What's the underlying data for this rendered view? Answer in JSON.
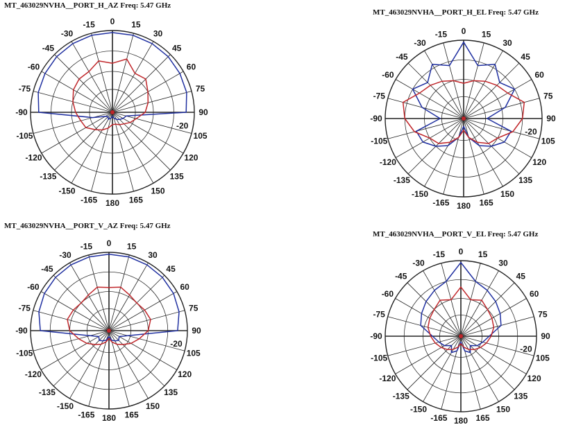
{
  "chart_data": [
    {
      "type": "polar-line",
      "title": "MT_463029NVHA__PORT_H_AZ  Freq:  5.47 GHz",
      "angle_labels": [
        "0",
        "15",
        "30",
        "45",
        "60",
        "75",
        "90",
        "105",
        "120",
        "135",
        "150",
        "165",
        "180",
        "165",
        "150",
        "135",
        "120",
        "105",
        "-90",
        "-105",
        "-120",
        "-135",
        "-150",
        "-165",
        "-75",
        "-60",
        "-45",
        "-30",
        "-15"
      ],
      "ring_label": "-20",
      "r_range_db": [
        -40,
        0
      ],
      "series": [
        {
          "color": "#1f2fa0",
          "angles_deg": [
            -180,
            -165,
            -150,
            -135,
            -120,
            -105,
            -90,
            -75,
            -60,
            -45,
            -30,
            -15,
            0,
            15,
            30,
            45,
            60,
            75,
            90,
            105,
            120,
            135,
            150,
            165,
            180
          ],
          "values_db": [
            -38,
            -37,
            -36,
            -37,
            -36,
            -30,
            -4,
            -2.5,
            -2,
            -1.5,
            -1.2,
            -1,
            -1,
            -1,
            -1.2,
            -1.5,
            -2,
            -2.5,
            -4,
            -33,
            -34,
            -35,
            -36,
            -37,
            -38
          ]
        },
        {
          "color": "#c0262a",
          "angles_deg": [
            -180,
            -165,
            -150,
            -135,
            -120,
            -105,
            -90,
            -75,
            -60,
            -45,
            -30,
            -15,
            0,
            15,
            30,
            45,
            60,
            75,
            90,
            105,
            120,
            135,
            150,
            165,
            180
          ],
          "values_db": [
            -34,
            -32,
            -30,
            -28,
            -25,
            -24,
            -22,
            -20,
            -18,
            -17,
            -17,
            -14,
            -16,
            -13,
            -18,
            -17,
            -20,
            -22,
            -24,
            -28,
            -30,
            -32,
            -33,
            -34,
            -34
          ]
        }
      ]
    },
    {
      "type": "polar-line",
      "title": "MT_463029NVHA__PORT_H_EL  Freq:  5.47 GHz",
      "angle_labels": [
        "0",
        "15",
        "30",
        "45",
        "60",
        "75",
        "90",
        "105",
        "120",
        "135",
        "150",
        "165",
        "180",
        "165",
        "150",
        "135",
        "120",
        "105",
        "-90",
        "-105",
        "-120",
        "-135",
        "-150",
        "-165",
        "-75",
        "-60",
        "-45",
        "-30",
        "-15"
      ],
      "ring_label": "-20",
      "r_range_db": [
        -40,
        0
      ],
      "series": [
        {
          "color": "#1f2fa0",
          "angles_deg": [
            -180,
            -165,
            -150,
            -135,
            -120,
            -105,
            -90,
            -75,
            -60,
            -45,
            -30,
            -15,
            0,
            15,
            30,
            45,
            60,
            75,
            90,
            105,
            120,
            135,
            150,
            165,
            180
          ],
          "values_db": [
            -36,
            -30,
            -24,
            -20,
            -16,
            -15,
            -28,
            -18,
            -10,
            -14,
            -8,
            -12,
            -1,
            -12,
            -8,
            -14,
            -10,
            -18,
            -28,
            -15,
            -16,
            -20,
            -24,
            -30,
            -36
          ]
        },
        {
          "color": "#c0262a",
          "angles_deg": [
            -180,
            -165,
            -150,
            -135,
            -120,
            -105,
            -90,
            -75,
            -60,
            -45,
            -30,
            -15,
            0,
            15,
            30,
            45,
            60,
            75,
            90,
            105,
            120,
            135,
            150,
            165,
            180
          ],
          "values_db": [
            -34,
            -30,
            -26,
            -22,
            -20,
            -14,
            -10,
            -8,
            -14,
            -16,
            -18,
            -20,
            -22,
            -20,
            -18,
            -16,
            -14,
            -8,
            -10,
            -14,
            -20,
            -22,
            -26,
            -30,
            -34
          ]
        }
      ]
    },
    {
      "type": "polar-line",
      "title": "MT_463029NVHA__PORT_V_AZ  Freq:  5.47 GHz",
      "angle_labels": [
        "0",
        "15",
        "30",
        "45",
        "60",
        "75",
        "90",
        "105",
        "120",
        "135",
        "150",
        "165",
        "180",
        "165",
        "150",
        "135",
        "120",
        "105",
        "-90",
        "-105",
        "-120",
        "-135",
        "-150",
        "-165",
        "-75",
        "-60",
        "-45",
        "-30",
        "-15"
      ],
      "ring_label": "-20",
      "r_range_db": [
        -40,
        0
      ],
      "series": [
        {
          "color": "#1f2fa0",
          "angles_deg": [
            -180,
            -165,
            -150,
            -135,
            -120,
            -105,
            -90,
            -75,
            -60,
            -45,
            -30,
            -15,
            0,
            15,
            30,
            45,
            60,
            75,
            90,
            105,
            120,
            135,
            150,
            165,
            180
          ],
          "values_db": [
            -37,
            -35,
            -34,
            -33,
            -34,
            -30,
            -5,
            -3,
            -2,
            -1.5,
            -1.2,
            -1,
            -1,
            -1,
            -1.2,
            -1.5,
            -2,
            -3,
            -5,
            -30,
            -34,
            -33,
            -34,
            -35,
            -37
          ]
        },
        {
          "color": "#c0262a",
          "angles_deg": [
            -180,
            -165,
            -150,
            -135,
            -120,
            -105,
            -90,
            -75,
            -60,
            -45,
            -30,
            -15,
            0,
            15,
            30,
            45,
            60,
            75,
            90,
            105,
            120,
            135,
            150,
            165,
            180
          ],
          "values_db": [
            -36,
            -34,
            -32,
            -30,
            -27,
            -24,
            -20,
            -18,
            -19,
            -20,
            -19,
            -17,
            -18,
            -17,
            -19,
            -20,
            -19,
            -18,
            -20,
            -24,
            -27,
            -30,
            -32,
            -34,
            -36
          ]
        }
      ]
    },
    {
      "type": "polar-line",
      "title": "MT_463029NVHA__PORT_V_EL  Freq:  5.47 GHz",
      "angle_labels": [
        "0",
        "15",
        "30",
        "45",
        "60",
        "75",
        "90",
        "105",
        "120",
        "135",
        "150",
        "165",
        "180",
        "165",
        "150",
        "135",
        "120",
        "105",
        "-90",
        "-105",
        "-120",
        "-135",
        "-150",
        "-165",
        "-75",
        "-60",
        "-45",
        "-30",
        "-15"
      ],
      "ring_label": "-20",
      "r_range_db": [
        -40,
        0
      ],
      "series": [
        {
          "color": "#1f2fa0",
          "angles_deg": [
            -180,
            -165,
            -150,
            -135,
            -120,
            -105,
            -90,
            -75,
            -60,
            -45,
            -30,
            -15,
            0,
            15,
            30,
            45,
            60,
            75,
            90,
            105,
            120,
            135,
            150,
            165,
            180
          ],
          "values_db": [
            -37,
            -32,
            -30,
            -33,
            -30,
            -28,
            -25,
            -18,
            -16,
            -14,
            -12,
            -10,
            -1,
            -10,
            -12,
            -14,
            -16,
            -18,
            -25,
            -28,
            -30,
            -33,
            -30,
            -32,
            -37
          ]
        },
        {
          "color": "#c0262a",
          "angles_deg": [
            -180,
            -165,
            -150,
            -135,
            -120,
            -105,
            -90,
            -75,
            -60,
            -45,
            -30,
            -15,
            0,
            15,
            30,
            45,
            60,
            75,
            90,
            105,
            120,
            135,
            150,
            165,
            180
          ],
          "values_db": [
            -36,
            -34,
            -32,
            -30,
            -28,
            -26,
            -24,
            -22,
            -21,
            -20,
            -18,
            -20,
            -14,
            -20,
            -18,
            -20,
            -21,
            -22,
            -24,
            -26,
            -28,
            -30,
            -32,
            -34,
            -36
          ]
        }
      ]
    }
  ]
}
